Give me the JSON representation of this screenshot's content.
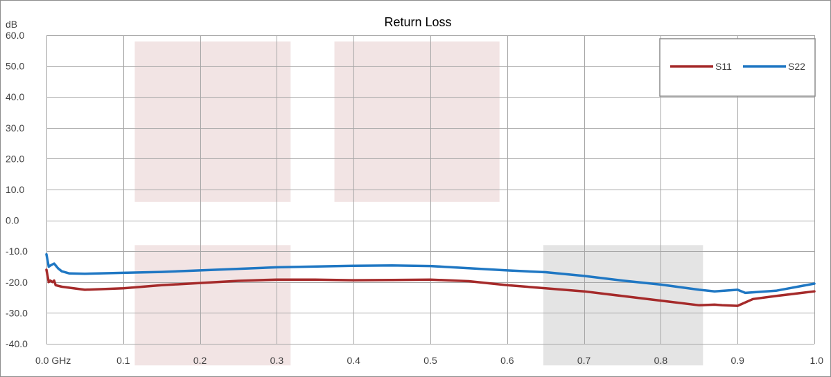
{
  "chart_data": {
    "type": "line",
    "title": "Return Loss",
    "ylabel": "dB",
    "xlabel": "",
    "xlim": [
      0,
      1.0
    ],
    "ylim": [
      -40,
      60
    ],
    "x_ticks": [
      0,
      0.1,
      0.2,
      0.3,
      0.4,
      0.5,
      0.6,
      0.7,
      0.8,
      0.9,
      1.0
    ],
    "x_tick_labels": [
      "0.0 GHz",
      "0.1",
      "0.2",
      "0.3",
      "0.4",
      "0.5",
      "0.6",
      "0.7",
      "0.8",
      "0.9",
      "1.0"
    ],
    "y_ticks": [
      60,
      50,
      40,
      30,
      20,
      10,
      0,
      -10,
      -20,
      -30,
      -40
    ],
    "y_tick_labels": [
      "60.0",
      "50.0",
      "40.0",
      "30.0",
      "20.0",
      "10.0",
      "0.0",
      "-10.0",
      "-20.0",
      "-30.0",
      "-40.0"
    ],
    "grid": true,
    "legend": "top-right",
    "shaded_regions": [
      {
        "x": [
          0.115,
          0.318
        ],
        "y": [
          6,
          58
        ],
        "color": "#f2e4e4"
      },
      {
        "x": [
          0.375,
          0.59
        ],
        "y": [
          6,
          58
        ],
        "color": "#f2e4e4"
      },
      {
        "x": [
          0.115,
          0.318
        ],
        "y": [
          -47,
          -8
        ],
        "color": "#f2e4e4"
      },
      {
        "x": [
          0.647,
          0.855
        ],
        "y": [
          -47,
          -8
        ],
        "color": "#e4e4e4"
      }
    ],
    "series": [
      {
        "name": "S11",
        "color": "#a52a2a",
        "x": [
          0,
          0.003,
          0.005,
          0.008,
          0.01,
          0.012,
          0.02,
          0.05,
          0.1,
          0.15,
          0.2,
          0.25,
          0.3,
          0.35,
          0.4,
          0.45,
          0.5,
          0.55,
          0.6,
          0.65,
          0.7,
          0.75,
          0.8,
          0.85,
          0.87,
          0.88,
          0.9,
          0.92,
          0.95,
          1.0
        ],
        "y": [
          -16,
          -20,
          -19.5,
          -20,
          -19.5,
          -21,
          -21.5,
          -22.5,
          -22,
          -21,
          -20.3,
          -19.6,
          -19.2,
          -19.2,
          -19.4,
          -19.3,
          -19.2,
          -19.7,
          -21,
          -22,
          -23,
          -24.5,
          -26,
          -27.5,
          -27.3,
          -27.5,
          -27.7,
          -25.5,
          -24.5,
          -23
        ]
      },
      {
        "name": "S22",
        "color": "#1f77c3",
        "x": [
          0,
          0.003,
          0.006,
          0.01,
          0.015,
          0.02,
          0.03,
          0.05,
          0.1,
          0.15,
          0.2,
          0.3,
          0.4,
          0.45,
          0.5,
          0.55,
          0.6,
          0.65,
          0.7,
          0.75,
          0.8,
          0.85,
          0.87,
          0.9,
          0.91,
          0.95,
          1.0
        ],
        "y": [
          -11,
          -15,
          -14.5,
          -14,
          -15.5,
          -16.5,
          -17.2,
          -17.3,
          -17,
          -16.7,
          -16.2,
          -15.2,
          -14.7,
          -14.6,
          -14.8,
          -15.5,
          -16.2,
          -16.8,
          -18,
          -19.5,
          -20.8,
          -22.5,
          -23,
          -22.5,
          -23.5,
          -22.8,
          -20.5
        ]
      }
    ]
  }
}
